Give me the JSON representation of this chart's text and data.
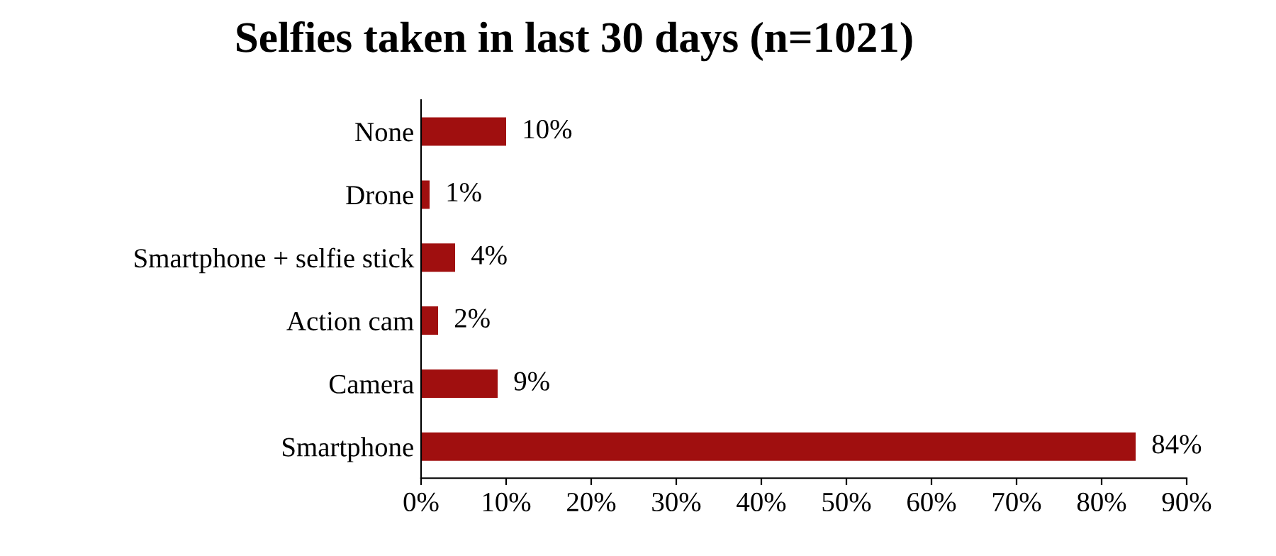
{
  "chart_data": {
    "type": "bar",
    "orientation": "horizontal",
    "title": "Selfies taken in last 30 days (n=1021)",
    "categories": [
      "None",
      "Drone",
      "Smartphone + selfie stick",
      "Action cam",
      "Camera",
      "Smartphone"
    ],
    "values": [
      10,
      1,
      4,
      2,
      9,
      84
    ],
    "value_labels": [
      "10%",
      "1%",
      "4%",
      "2%",
      "9%",
      "84%"
    ],
    "color": "#a00f0f",
    "xlim": [
      0,
      90
    ],
    "xticks": [
      {
        "value": 0,
        "label": "0%"
      },
      {
        "value": 10,
        "label": "10%"
      },
      {
        "value": 20,
        "label": "20%"
      },
      {
        "value": 30,
        "label": "30%"
      },
      {
        "value": 40,
        "label": "40%"
      },
      {
        "value": 50,
        "label": "50%"
      },
      {
        "value": 60,
        "label": "60%"
      },
      {
        "value": 70,
        "label": "70%"
      },
      {
        "value": 80,
        "label": "80%"
      },
      {
        "value": 90,
        "label": "90%"
      }
    ],
    "grid": false,
    "legend": false
  }
}
